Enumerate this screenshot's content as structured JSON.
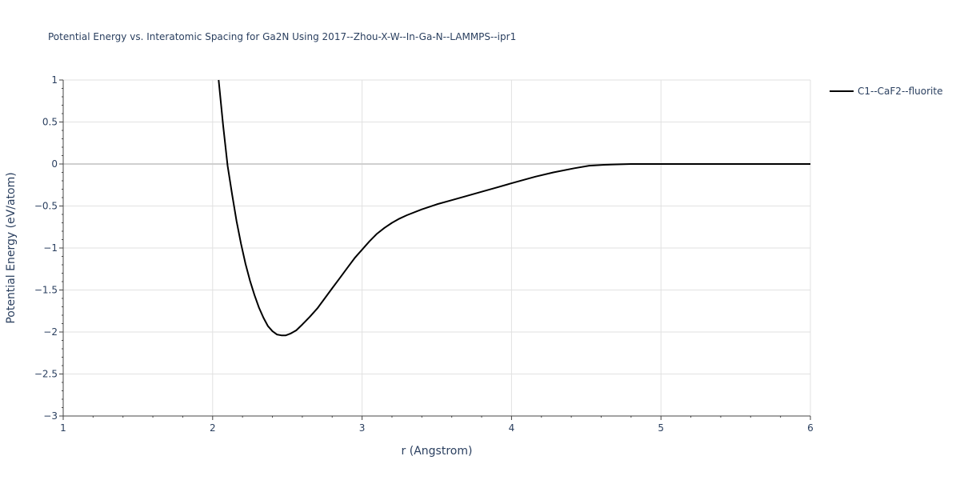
{
  "chart_data": {
    "type": "line",
    "title": "Potential Energy vs. Interatomic Spacing for Ga2N Using 2017--Zhou-X-W--In-Ga-N--LAMMPS--ipr1",
    "xlabel": "r (Angstrom)",
    "ylabel": "Potential Energy (eV/atom)",
    "xlim": [
      1,
      6
    ],
    "ylim": [
      -3,
      1
    ],
    "x_ticks": [
      1,
      2,
      3,
      4,
      5,
      6
    ],
    "x_tick_labels": [
      "1",
      "2",
      "3",
      "4",
      "5",
      "6"
    ],
    "y_ticks": [
      1,
      0.5,
      0,
      -0.5,
      -1,
      -1.5,
      -2,
      -2.5,
      -3
    ],
    "y_tick_labels": [
      "1",
      "0.5",
      "0",
      "−0.5",
      "−1",
      "−1.5",
      "−2",
      "−2.5",
      "−3"
    ],
    "grid": true,
    "legend_position": "top-right",
    "series": [
      {
        "name": "C1--CaF2--fluorite",
        "color": "#000000",
        "x": [
          2.04,
          2.07,
          2.1,
          2.13,
          2.16,
          2.19,
          2.22,
          2.25,
          2.28,
          2.31,
          2.34,
          2.37,
          2.4,
          2.43,
          2.46,
          2.49,
          2.52,
          2.56,
          2.6,
          2.65,
          2.7,
          2.75,
          2.8,
          2.85,
          2.9,
          2.95,
          3.0,
          3.05,
          3.1,
          3.15,
          3.2,
          3.25,
          3.3,
          3.4,
          3.5,
          3.6,
          3.7,
          3.8,
          3.9,
          4.0,
          4.08,
          4.16,
          4.28,
          4.42,
          4.52,
          4.62,
          4.8,
          5.0,
          5.5,
          6.0
        ],
        "y": [
          1.0,
          0.46,
          -0.02,
          -0.36,
          -0.68,
          -0.95,
          -1.19,
          -1.39,
          -1.56,
          -1.71,
          -1.83,
          -1.93,
          -1.99,
          -2.03,
          -2.04,
          -2.04,
          -2.02,
          -1.98,
          -1.91,
          -1.82,
          -1.72,
          -1.6,
          -1.48,
          -1.36,
          -1.24,
          -1.12,
          -1.02,
          -0.92,
          -0.83,
          -0.76,
          -0.7,
          -0.65,
          -0.61,
          -0.54,
          -0.48,
          -0.43,
          -0.38,
          -0.33,
          -0.28,
          -0.23,
          -0.19,
          -0.15,
          -0.1,
          -0.05,
          -0.02,
          -0.01,
          0.0,
          0.0,
          0.0,
          0.0
        ]
      }
    ]
  }
}
